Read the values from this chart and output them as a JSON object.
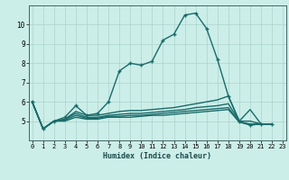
{
  "xlabel": "Humidex (Indice chaleur)",
  "background_color": "#cceee8",
  "grid_color": "#aad4cc",
  "line_color": "#1a6b6b",
  "series": [
    [
      6.0,
      4.6,
      5.0,
      5.2,
      5.8,
      5.3,
      5.4,
      6.0,
      7.6,
      8.0,
      7.9,
      8.1,
      9.2,
      9.5,
      10.5,
      10.6,
      9.8,
      8.2,
      6.3,
      5.0,
      4.8,
      4.85,
      4.85
    ],
    [
      6.0,
      4.6,
      5.0,
      5.1,
      5.5,
      5.3,
      5.3,
      5.4,
      5.5,
      5.55,
      5.55,
      5.6,
      5.65,
      5.7,
      5.8,
      5.9,
      6.0,
      6.1,
      6.3,
      5.0,
      5.6,
      4.85,
      4.85
    ],
    [
      6.0,
      4.6,
      5.0,
      5.1,
      5.4,
      5.2,
      5.2,
      5.3,
      5.35,
      5.4,
      5.4,
      5.45,
      5.5,
      5.55,
      5.6,
      5.7,
      5.75,
      5.8,
      5.9,
      5.0,
      5.0,
      4.85,
      4.85
    ],
    [
      6.0,
      4.6,
      5.0,
      5.05,
      5.3,
      5.15,
      5.15,
      5.25,
      5.25,
      5.3,
      5.3,
      5.35,
      5.4,
      5.45,
      5.5,
      5.55,
      5.6,
      5.65,
      5.7,
      4.95,
      4.85,
      4.85,
      4.85
    ],
    [
      6.0,
      4.6,
      5.0,
      5.0,
      5.2,
      5.1,
      5.1,
      5.2,
      5.2,
      5.2,
      5.25,
      5.3,
      5.3,
      5.35,
      5.4,
      5.45,
      5.5,
      5.55,
      5.6,
      4.95,
      4.8,
      4.85,
      4.85
    ]
  ],
  "ylim": [
    4.0,
    11.0
  ],
  "yticks": [
    5,
    6,
    7,
    8,
    9,
    10
  ],
  "xticks": [
    0,
    1,
    2,
    3,
    4,
    5,
    6,
    7,
    8,
    9,
    10,
    11,
    12,
    13,
    14,
    15,
    16,
    17,
    18,
    19,
    20,
    21,
    22,
    23
  ],
  "xlim": [
    -0.3,
    23.3
  ]
}
